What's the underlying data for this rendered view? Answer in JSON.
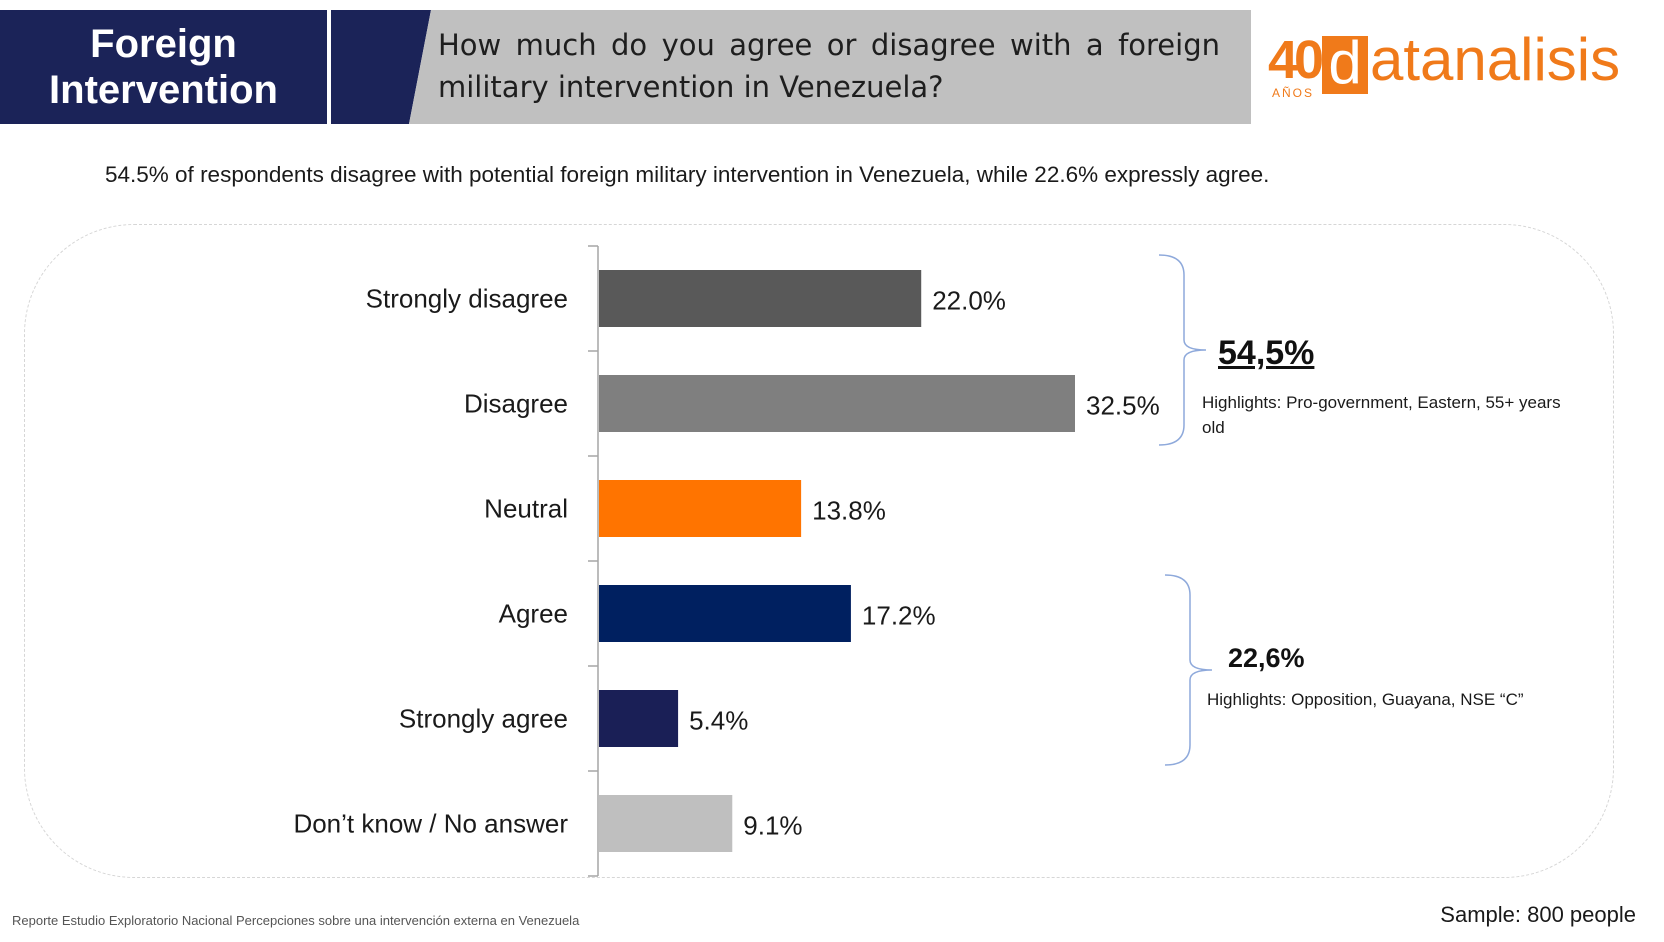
{
  "header": {
    "topic_line1": "Foreign",
    "topic_line2": "Intervention",
    "question": "How much do you agree or disagree with a foreign military intervention in Venezuela?"
  },
  "logo": {
    "number": "40",
    "sub": "AÑOS",
    "initial": "d",
    "rest": "atanalisis"
  },
  "subtitle": "54.5% of respondents disagree with potential foreign military intervention in Venezuela, while 22.6% expressly agree.",
  "chart_data": {
    "type": "bar",
    "orientation": "horizontal",
    "categories": [
      "Strongly disagree",
      "Disagree",
      "Neutral",
      "Agree",
      "Strongly agree",
      "Don’t know / No answer"
    ],
    "values": [
      22.0,
      32.5,
      13.8,
      17.2,
      5.4,
      9.1
    ],
    "value_labels": [
      "22.0%",
      "32.5%",
      "13.8%",
      "17.2%",
      "5.4%",
      "9.1%"
    ],
    "colors": [
      "#595959",
      "#7f7f7f",
      "#ff7400",
      "#002060",
      "#1a1f56",
      "#bfbfbf"
    ],
    "xlim": [
      0,
      32.5
    ],
    "grid": false,
    "legend": "none"
  },
  "groups": [
    {
      "total": "54,5%",
      "note": "Highlights: Pro-government, Eastern, 55+ years old"
    },
    {
      "total": "22,6%",
      "note": "Highlights: Opposition, Guayana, NSE “C”"
    }
  ],
  "footer": {
    "source": "Reporte Estudio Exploratorio Nacional Percepciones sobre una intervención externa en Venezuela",
    "sample": "Sample: 800 people"
  }
}
